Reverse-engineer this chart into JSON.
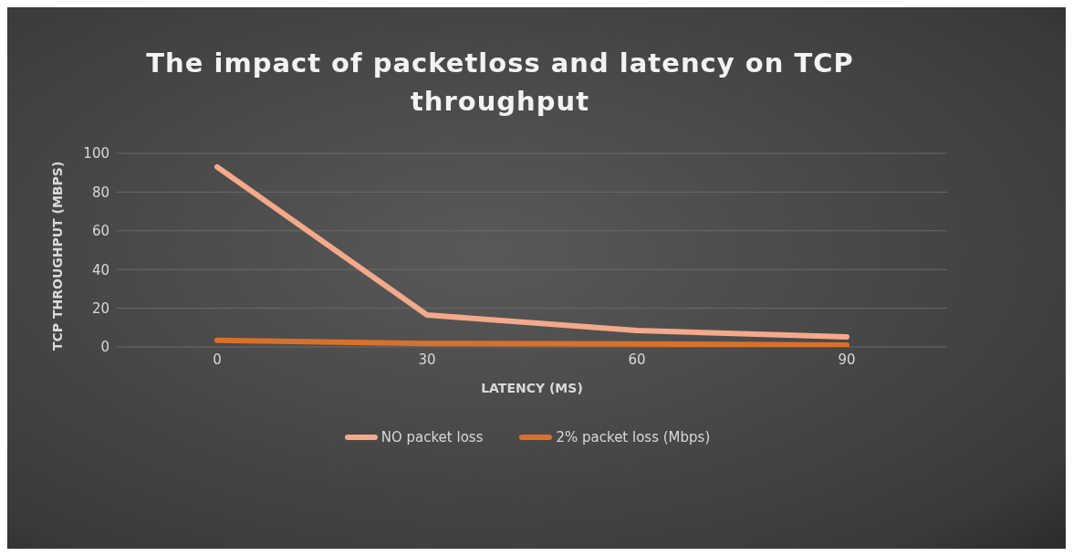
{
  "chart_data": {
    "type": "line",
    "title": "The impact of packetloss and latency on TCP throughput",
    "xlabel": "LATENCY (MS)",
    "ylabel": "TCP THROUGHPUT (MBPS)",
    "categories": [
      "0",
      "30",
      "60",
      "90"
    ],
    "series": [
      {
        "name": "NO packet loss",
        "color": "#f4a98a",
        "values": [
          93,
          16.5,
          8.5,
          5.2
        ]
      },
      {
        "name": "2% packet loss (Mbps)",
        "color": "#d9712b",
        "values": [
          3.4,
          1.8,
          1.5,
          1.0
        ]
      }
    ],
    "ylim": [
      0,
      100
    ],
    "yticks": [
      0,
      20,
      40,
      60,
      80,
      100
    ],
    "grid": "y",
    "legend": "bottom",
    "marker": "none",
    "line_style": "solid"
  }
}
